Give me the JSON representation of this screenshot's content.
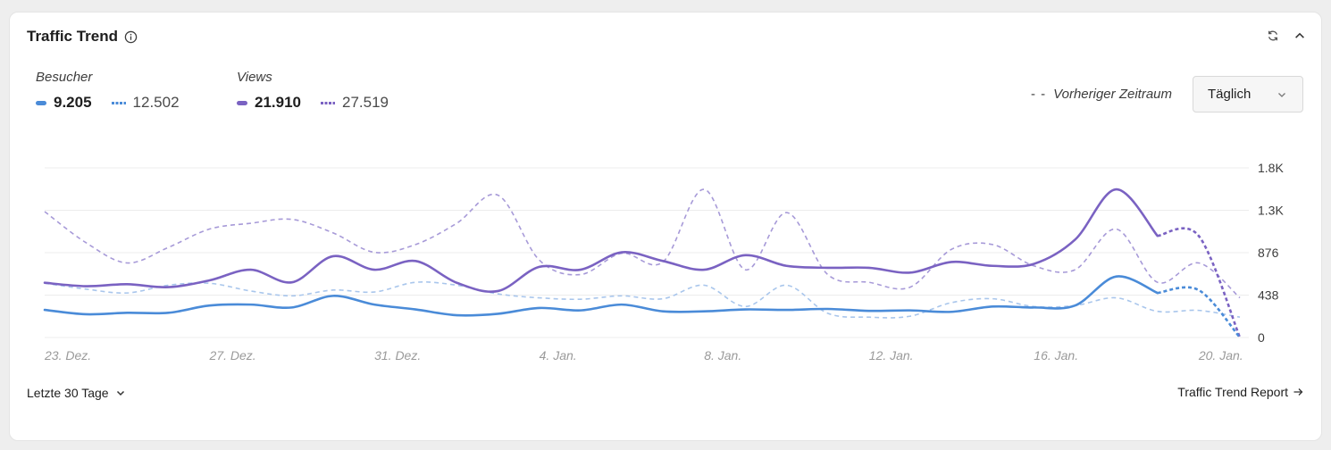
{
  "widget": {
    "title": "Traffic Trend",
    "info_icon": "info-circle-icon",
    "refresh_icon": "refresh-icon",
    "collapse_icon": "chevron-up-icon"
  },
  "legend": {
    "visitors": {
      "label": "Besucher",
      "current": "9.205",
      "previous": "12.502",
      "color": "#4a8bd8"
    },
    "views": {
      "label": "Views",
      "current": "21.910",
      "previous": "27.519",
      "color": "#7a62c2"
    }
  },
  "previous_period": {
    "dashes": "- -",
    "label": "Vorheriger Zeitraum"
  },
  "interval_select": {
    "value": "Täglich"
  },
  "footer": {
    "range_label": "Letzte 30 Tage",
    "report_link": "Traffic Trend Report"
  },
  "chart_data": {
    "type": "line",
    "y_ticks": [
      "0",
      "438",
      "876",
      "1.3K",
      "1.8K"
    ],
    "ylim": [
      0,
      1752
    ],
    "x_labels": [
      "23. Dez.",
      "27. Dez.",
      "31. Dez.",
      "4. Jan.",
      "8. Jan.",
      "12. Jan.",
      "16. Jan.",
      "20. Jan."
    ],
    "x_label_indices": [
      0,
      4,
      8,
      12,
      16,
      20,
      24,
      28
    ],
    "grid": true,
    "series": [
      {
        "name": "Views",
        "style": "solid",
        "color": "#7a62c2",
        "values": [
          565,
          530,
          550,
          520,
          590,
          700,
          570,
          840,
          700,
          790,
          565,
          480,
          730,
          700,
          880,
          790,
          700,
          850,
          740,
          720,
          720,
          670,
          780,
          740,
          760,
          1010,
          1530,
          1050,
          1050,
          0
        ]
      },
      {
        "name": "Views (Vorheriger Zeitraum)",
        "style": "dashed",
        "color": "#a79ad8",
        "values": [
          1300,
          980,
          770,
          930,
          1120,
          1180,
          1220,
          1080,
          880,
          960,
          1180,
          1470,
          800,
          650,
          870,
          780,
          1530,
          700,
          1290,
          650,
          570,
          520,
          910,
          960,
          740,
          700,
          1120,
          570,
          770,
          410
        ]
      },
      {
        "name": "Besucher",
        "style": "solid",
        "color": "#4a8bd8",
        "values": [
          285,
          240,
          255,
          255,
          330,
          340,
          310,
          430,
          340,
          290,
          230,
          245,
          305,
          280,
          340,
          270,
          270,
          290,
          285,
          295,
          275,
          280,
          265,
          320,
          310,
          330,
          630,
          460,
          490,
          0
        ]
      },
      {
        "name": "Besucher (Vorheriger Zeitraum)",
        "style": "dashed",
        "color": "#a9c6ec",
        "values": [
          560,
          500,
          460,
          540,
          560,
          480,
          430,
          490,
          470,
          570,
          540,
          450,
          410,
          395,
          430,
          400,
          540,
          320,
          540,
          250,
          210,
          220,
          360,
          400,
          320,
          330,
          410,
          270,
          280,
          210
        ]
      }
    ]
  }
}
